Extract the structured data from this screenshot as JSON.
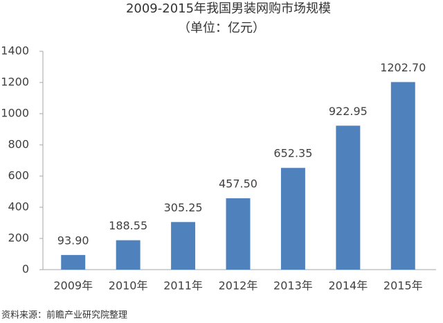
{
  "chart_data": {
    "type": "bar",
    "title": "2009-2015年我国男装网购市场规模",
    "subtitle": "（单位：亿元）",
    "source": "资料来源：前瞻产业研究院整理",
    "categories": [
      "2009年",
      "2010年",
      "2011年",
      "2012年",
      "2013年",
      "2014年",
      "2015年"
    ],
    "values": [
      93.9,
      188.55,
      305.25,
      457.5,
      652.35,
      922.95,
      1202.7
    ],
    "value_labels": [
      "93.90",
      "188.55",
      "305.25",
      "457.50",
      "652.35",
      "922.95",
      "1202.70"
    ],
    "color": "#4f81bd",
    "ylim": [
      0,
      1400
    ],
    "yticks": [
      0,
      200,
      400,
      600,
      800,
      1000,
      1200,
      1400
    ],
    "grid": false
  }
}
